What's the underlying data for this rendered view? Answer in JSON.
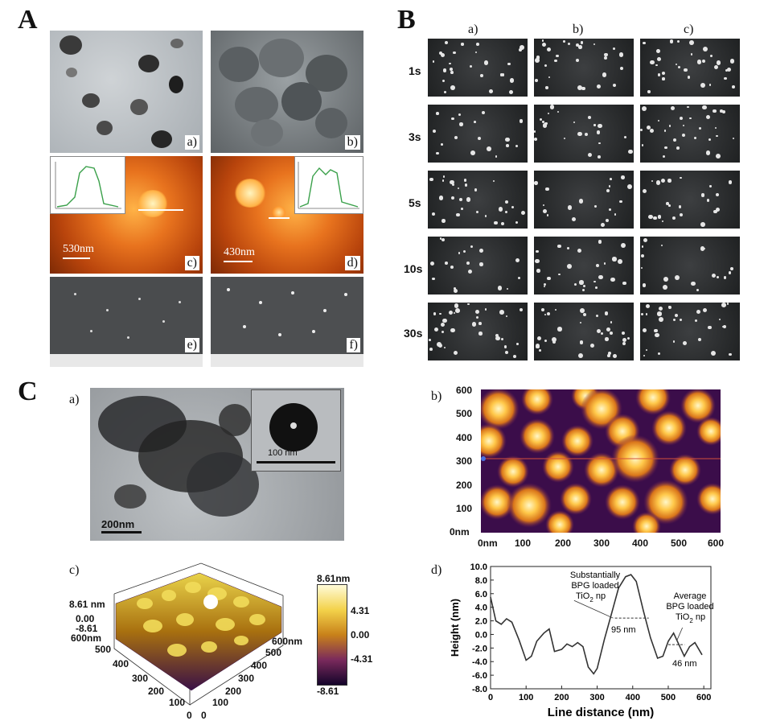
{
  "panel_A": {
    "letter": "A",
    "sublabels": [
      "a)",
      "b)",
      "c)",
      "d)",
      "e)",
      "f)"
    ],
    "afm_scale_c": "530nm",
    "afm_scale_d": "430nm"
  },
  "panel_B": {
    "letter": "B",
    "columns": [
      "a)",
      "b)",
      "c)"
    ],
    "rows": [
      "1s",
      "3s",
      "5s",
      "10s",
      "30s"
    ]
  },
  "panel_C": {
    "letter": "C",
    "a_label": "a)",
    "a_scale": "200nm",
    "a_inset_scale": "100 nm",
    "b_label": "b)",
    "b_yticks": [
      "600",
      "500",
      "400",
      "300",
      "200",
      "100",
      "0nm"
    ],
    "b_xticks": [
      "0nm",
      "100",
      "200",
      "300",
      "400",
      "500",
      "600"
    ],
    "c_label": "c)",
    "c_zlabels": [
      "8.61 nm",
      "0.00",
      "-8.61",
      "600nm"
    ],
    "c_left_ticks": [
      "500",
      "400",
      "300",
      "200",
      "100",
      "0"
    ],
    "c_right_ticks": [
      "600nm",
      "500",
      "400",
      "300",
      "200",
      "100",
      "0"
    ],
    "c_colorbar": [
      "8.61nm",
      "4.31",
      "0.00",
      "-4.31",
      "-8.61"
    ],
    "d_label": "d)"
  },
  "chart_data": {
    "type": "line",
    "xlabel": "Line distance (nm)",
    "ylabel": "Height (nm)",
    "xlim": [
      0,
      620
    ],
    "ylim": [
      -8,
      10
    ],
    "xticks": [
      "0",
      "100",
      "200",
      "300",
      "400",
      "500",
      "600"
    ],
    "yticks": [
      "10.0",
      "8.0",
      "6.0",
      "4.0",
      "2.0",
      "0.0",
      "-2.0",
      "-4.0",
      "-6.0",
      "-8.0"
    ],
    "annotations": {
      "left_title_1": "Substantially",
      "left_title_2": "BPG loaded",
      "left_title_3": "TiO",
      "left_title_3b": " np",
      "left_width": "95 nm",
      "right_title_1": "Average",
      "right_title_2": "BPG loaded",
      "right_title_3": "TiO",
      "right_title_3b": " np",
      "right_width": "46 nm",
      "subscript": "2"
    },
    "series": [
      {
        "x": [
          0,
          15,
          30,
          45,
          60,
          80,
          100,
          115,
          130,
          150,
          165,
          180,
          200,
          215,
          230,
          245,
          260,
          275,
          290,
          300,
          320,
          340,
          360,
          380,
          395,
          410,
          430,
          450,
          470,
          485,
          500,
          515,
          530,
          545,
          560,
          575,
          595
        ],
        "y": [
          5.5,
          2.0,
          1.5,
          2.3,
          1.8,
          -0.8,
          -3.8,
          -3.2,
          -1.0,
          0.2,
          0.8,
          -2.5,
          -2.2,
          -1.4,
          -1.8,
          -1.2,
          -1.8,
          -4.8,
          -5.8,
          -5.0,
          -0.8,
          3.0,
          6.8,
          8.5,
          8.8,
          7.8,
          3.5,
          -0.5,
          -3.5,
          -3.2,
          -1.0,
          0.2,
          -1.5,
          -3.2,
          -1.8,
          -1.2,
          -3.0
        ]
      }
    ]
  }
}
